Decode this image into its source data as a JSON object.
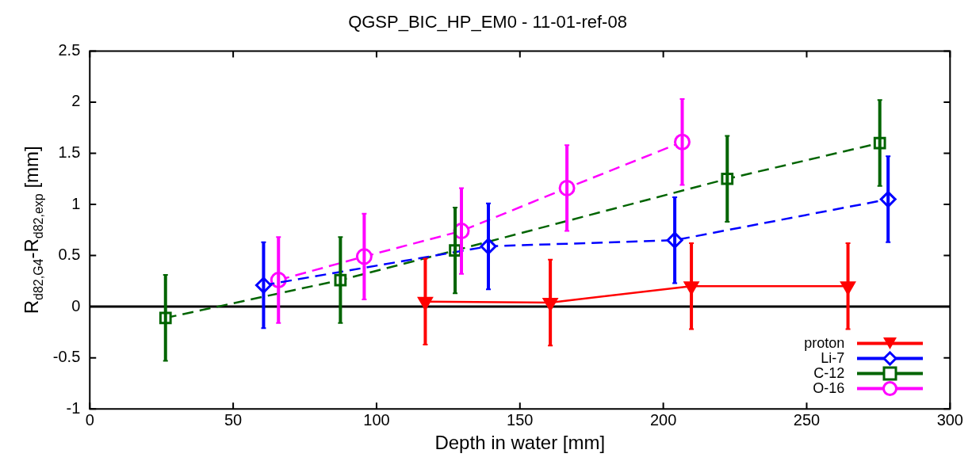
{
  "chart_data": {
    "type": "line",
    "title": "QGSP_BIC_HP_EM0 - 11-01-ref-08",
    "xlabel": "Depth in water [mm]",
    "ylabel": "R$_{d82,G4}$-R$_{d82,exp}$ [mm]",
    "xlim": [
      0,
      300
    ],
    "xticks": [
      0,
      50,
      100,
      150,
      200,
      250,
      300
    ],
    "ylim": [
      -1,
      2.5
    ],
    "yticks": [
      -1,
      -0.5,
      0,
      0.5,
      1,
      1.5,
      2,
      2.5
    ],
    "grid": false,
    "legend": "bottom right",
    "ref_lines": [
      {
        "axis": "y",
        "value": 0,
        "color": "#000000",
        "line_style": "solid"
      }
    ],
    "series": [
      {
        "name": "proton",
        "color": "#ff0000",
        "marker": "triangle",
        "line_style": "solid",
        "x": [
          117,
          160.6,
          209.8,
          264.4
        ],
        "values": [
          0.05,
          0.04,
          0.2,
          0.2
        ],
        "errors": [
          0.42,
          0.42,
          0.42,
          0.42
        ]
      },
      {
        "name": "Li-7",
        "color": "#0000ff",
        "marker": "diamond",
        "line_style": "dashed",
        "x": [
          60.6,
          139,
          204,
          278.4
        ],
        "values": [
          0.21,
          0.59,
          0.65,
          1.05
        ],
        "errors": [
          0.42,
          0.42,
          0.42,
          0.42
        ]
      },
      {
        "name": "C-12",
        "color": "#006400",
        "marker": "square",
        "line_style": "dashed",
        "x": [
          26.4,
          87.4,
          127.4,
          222.3,
          275.5
        ],
        "values": [
          -0.11,
          0.26,
          0.55,
          1.25,
          1.6
        ],
        "errors": [
          0.42,
          0.42,
          0.42,
          0.42,
          0.42
        ]
      },
      {
        "name": "O-16",
        "color": "#ff00ff",
        "marker": "circle",
        "line_style": "dashed",
        "x": [
          65.8,
          95.7,
          129.6,
          166.4,
          206.6
        ],
        "values": [
          0.26,
          0.49,
          0.74,
          1.16,
          1.61
        ],
        "errors": [
          0.42,
          0.42,
          0.42,
          0.42,
          0.42
        ]
      }
    ]
  }
}
